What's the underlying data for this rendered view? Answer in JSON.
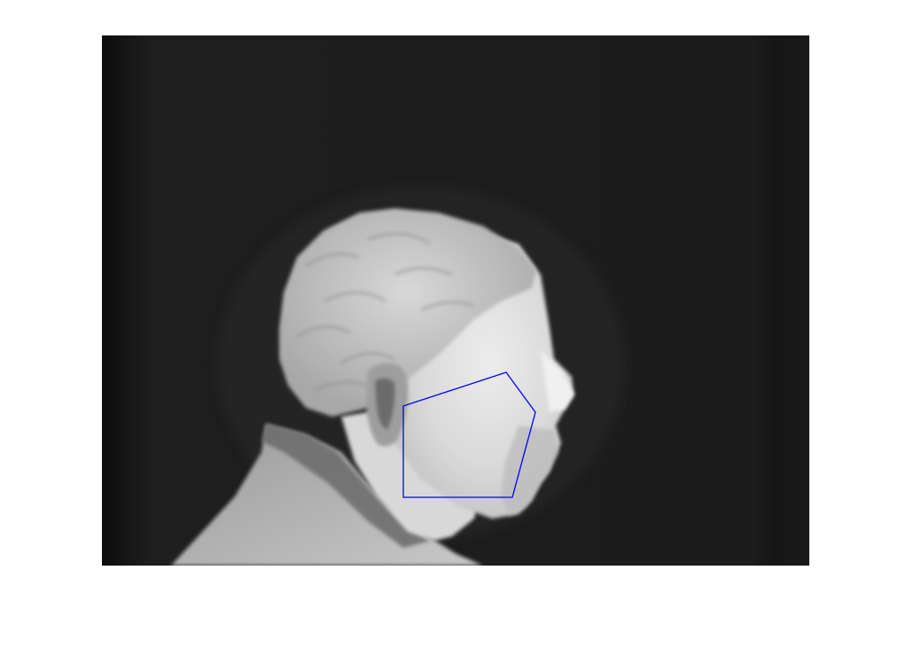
{
  "figure": {
    "background": "#ffffff"
  },
  "image": {
    "kind": "thermal grayscale photograph, profile view of a man",
    "colormap": "grayscale",
    "background_color": "#1b1b1b"
  },
  "roi_overlay": {
    "shape": "pentagon",
    "color": "#0000ff",
    "label_text": ""
  }
}
